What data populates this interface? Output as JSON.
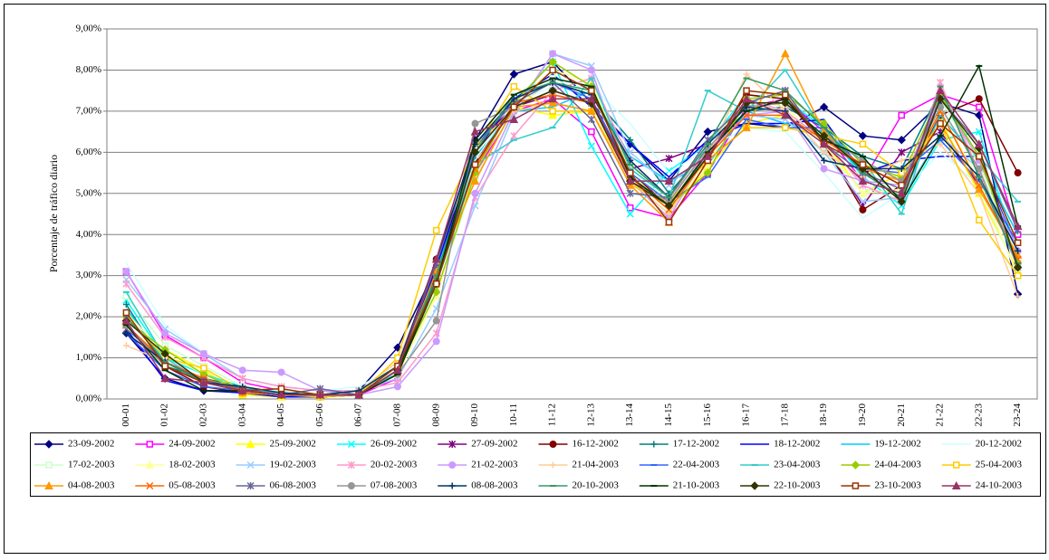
{
  "chart_data": {
    "type": "line",
    "y_label": "Porcentaje de tráfico diario",
    "categories": [
      "00-01",
      "01-02",
      "02-03",
      "03-04",
      "04-05",
      "05-06",
      "06-07",
      "07-08",
      "08-09",
      "09-10",
      "10-11",
      "11-12",
      "12-13",
      "13-14",
      "14-15",
      "15-16",
      "16-17",
      "17-18",
      "18-19",
      "19-20",
      "20-21",
      "21-22",
      "22-23",
      "23-24"
    ],
    "ylim": [
      0,
      9
    ],
    "yticks": [
      {
        "value": 0,
        "label": "0,00%"
      },
      {
        "value": 1,
        "label": "1,00%"
      },
      {
        "value": 2,
        "label": "2,00%"
      },
      {
        "value": 3,
        "label": "3,00%"
      },
      {
        "value": 4,
        "label": "4,00%"
      },
      {
        "value": 5,
        "label": "5,00%"
      },
      {
        "value": 6,
        "label": "6,00%"
      },
      {
        "value": 7,
        "label": "7,00%"
      },
      {
        "value": 8,
        "label": "8,00%"
      },
      {
        "value": 9,
        "label": "9,00%"
      }
    ],
    "grid": true,
    "legend": "bottom",
    "series": [
      {
        "name": "23-09-2002",
        "color": "#000080",
        "marker": "diamond",
        "values": [
          1.6,
          0.5,
          0.2,
          0.2,
          0.1,
          0.1,
          0.2,
          1.25,
          3.2,
          6.3,
          7.9,
          8.2,
          7.2,
          6.2,
          5.3,
          6.5,
          6.7,
          6.6,
          7.1,
          6.4,
          6.3,
          7.2,
          6.9,
          2.55
        ]
      },
      {
        "name": "24-09-2002",
        "color": "#FF00FF",
        "marker": "square",
        "values": [
          3.1,
          1.55,
          1.0,
          0.4,
          0.2,
          0.1,
          0.1,
          0.5,
          3.2,
          5.5,
          7.0,
          7.3,
          6.5,
          4.65,
          4.4,
          5.5,
          7.1,
          7.3,
          6.5,
          5.3,
          6.9,
          7.4,
          7.1,
          4.0
        ]
      },
      {
        "name": "25-09-2002",
        "color": "#FFFF00",
        "marker": "triangle",
        "values": [
          1.9,
          1.2,
          0.7,
          0.1,
          0.05,
          0.05,
          0.1,
          0.6,
          2.9,
          6.1,
          7.1,
          6.9,
          7.0,
          5.4,
          4.6,
          5.6,
          6.7,
          6.9,
          6.3,
          5.0,
          5.5,
          6.8,
          5.0,
          3.1
        ]
      },
      {
        "name": "26-09-2002",
        "color": "#00FFFF",
        "marker": "x",
        "values": [
          2.4,
          1.0,
          0.6,
          0.3,
          0.15,
          0.1,
          0.2,
          0.6,
          2.8,
          5.6,
          7.2,
          8.2,
          6.15,
          4.5,
          5.55,
          6.2,
          7.4,
          7.3,
          6.6,
          5.4,
          4.7,
          6.3,
          6.5,
          3.5
        ]
      },
      {
        "name": "27-09-2002",
        "color": "#800080",
        "marker": "star",
        "values": [
          1.8,
          0.8,
          0.4,
          0.2,
          0.1,
          0.1,
          0.1,
          0.6,
          3.3,
          6.2,
          7.1,
          7.4,
          7.2,
          5.6,
          5.85,
          6.2,
          7.2,
          7.5,
          6.2,
          4.7,
          6.0,
          6.5,
          5.2,
          3.4
        ]
      },
      {
        "name": "16-12-2002",
        "color": "#800000",
        "marker": "circle",
        "values": [
          1.8,
          0.8,
          0.3,
          0.15,
          0.1,
          0.05,
          0.1,
          0.7,
          3.4,
          5.8,
          7.1,
          7.5,
          7.2,
          5.5,
          4.7,
          6.0,
          7.4,
          7.3,
          6.2,
          4.6,
          5.2,
          6.9,
          7.3,
          5.5
        ]
      },
      {
        "name": "17-12-2002",
        "color": "#008080",
        "marker": "plus",
        "values": [
          2.3,
          0.8,
          0.5,
          0.3,
          0.1,
          0.1,
          0.2,
          0.7,
          2.9,
          6.0,
          7.3,
          7.7,
          7.4,
          6.3,
          5.0,
          6.1,
          7.0,
          7.1,
          6.6,
          5.9,
          5.6,
          7.5,
          5.5,
          3.2
        ]
      },
      {
        "name": "18-12-2002",
        "color": "#0000FF",
        "marker": "none",
        "values": [
          1.7,
          0.45,
          0.2,
          0.15,
          0.05,
          0.05,
          0.1,
          0.7,
          3.2,
          6.0,
          7.3,
          7.9,
          7.1,
          6.2,
          5.4,
          6.3,
          6.7,
          6.7,
          6.8,
          5.5,
          5.8,
          5.9,
          5.9,
          3.6
        ]
      },
      {
        "name": "19-12-2002",
        "color": "#00CCFF",
        "marker": "none",
        "values": [
          2.2,
          0.9,
          0.4,
          0.3,
          0.1,
          0.1,
          0.2,
          0.6,
          3.1,
          5.9,
          7.0,
          7.1,
          7.5,
          5.9,
          5.3,
          5.7,
          7.0,
          6.7,
          6.5,
          5.5,
          4.9,
          6.9,
          5.8,
          4.0
        ]
      },
      {
        "name": "20-12-2002",
        "color": "#CCFFFF",
        "marker": "none",
        "values": [
          3.3,
          1.8,
          1.1,
          0.5,
          0.3,
          0.2,
          0.3,
          0.8,
          3.0,
          5.8,
          7.2,
          7.6,
          7.6,
          6.7,
          5.5,
          6.1,
          6.6,
          6.5,
          5.5,
          4.4,
          5.0,
          6.0,
          5.2,
          3.0
        ]
      },
      {
        "name": "17-02-2003",
        "color": "#CCFFCC",
        "marker": "square",
        "values": [
          2.5,
          1.3,
          0.8,
          0.3,
          0.2,
          0.1,
          0.2,
          0.7,
          2.6,
          5.4,
          7.0,
          7.8,
          7.4,
          5.6,
          4.8,
          6.2,
          7.2,
          7.0,
          6.0,
          5.1,
          5.0,
          7.3,
          5.7,
          3.3
        ]
      },
      {
        "name": "18-02-2003",
        "color": "#FFFF99",
        "marker": "triangle",
        "values": [
          2.1,
          1.1,
          0.6,
          0.2,
          0.1,
          0.1,
          0.1,
          0.6,
          2.5,
          5.6,
          7.2,
          8.0,
          7.7,
          5.5,
          4.6,
          5.7,
          7.3,
          7.1,
          6.2,
          5.0,
          5.1,
          7.0,
          5.3,
          3.0
        ]
      },
      {
        "name": "19-02-2003",
        "color": "#99CCFF",
        "marker": "x",
        "values": [
          2.9,
          1.7,
          1.1,
          0.5,
          0.3,
          0.2,
          0.2,
          0.5,
          2.2,
          4.7,
          6.9,
          8.4,
          8.1,
          6.0,
          5.2,
          6.0,
          6.9,
          6.8,
          6.0,
          4.8,
          4.9,
          6.4,
          5.6,
          3.2
        ]
      },
      {
        "name": "20-02-2003",
        "color": "#FF99CC",
        "marker": "star",
        "values": [
          2.8,
          1.5,
          1.0,
          0.5,
          0.3,
          0.2,
          0.2,
          0.4,
          1.6,
          4.9,
          6.4,
          7.5,
          7.8,
          5.8,
          4.9,
          6.0,
          7.3,
          7.0,
          6.3,
          5.2,
          4.8,
          7.7,
          5.5,
          3.4
        ]
      },
      {
        "name": "21-02-2003",
        "color": "#CC99FF",
        "marker": "circle",
        "values": [
          3.1,
          1.6,
          1.1,
          0.7,
          0.65,
          0.2,
          0.1,
          0.3,
          1.4,
          5.0,
          7.0,
          8.4,
          8.0,
          5.3,
          4.4,
          6.0,
          6.9,
          7.0,
          5.6,
          5.3,
          5.2,
          7.4,
          5.8,
          3.6
        ]
      },
      {
        "name": "21-04-2003",
        "color": "#FFCC99",
        "marker": "plus",
        "values": [
          1.3,
          0.9,
          0.5,
          0.2,
          0.1,
          0.1,
          0.2,
          0.9,
          3.3,
          6.2,
          7.0,
          7.2,
          7.0,
          5.3,
          4.5,
          5.9,
          7.9,
          7.0,
          6.0,
          5.4,
          5.8,
          6.2,
          5.0,
          2.5
        ]
      },
      {
        "name": "22-04-2003",
        "color": "#3366FF",
        "marker": "dash",
        "values": [
          1.6,
          0.7,
          0.3,
          0.2,
          0.1,
          0.1,
          0.1,
          0.7,
          3.0,
          6.1,
          7.3,
          7.7,
          7.3,
          5.5,
          4.8,
          5.4,
          6.8,
          6.6,
          6.6,
          5.6,
          5.5,
          6.3,
          5.3,
          3.8
        ]
      },
      {
        "name": "23-04-2003",
        "color": "#33CCCC",
        "marker": "dash",
        "values": [
          2.6,
          1.0,
          0.4,
          0.3,
          0.1,
          0.1,
          0.2,
          0.6,
          3.1,
          5.7,
          6.3,
          6.6,
          7.8,
          5.6,
          4.9,
          7.5,
          7.0,
          8.0,
          6.5,
          5.8,
          4.5,
          7.4,
          5.9,
          4.8
        ]
      },
      {
        "name": "24-04-2003",
        "color": "#99CC00",
        "marker": "diamond",
        "values": [
          1.9,
          1.2,
          0.6,
          0.2,
          0.1,
          0.1,
          0.1,
          0.7,
          2.6,
          5.5,
          7.2,
          8.2,
          7.6,
          5.4,
          4.7,
          5.5,
          7.3,
          7.4,
          6.7,
          5.7,
          5.4,
          7.4,
          5.9,
          3.3
        ]
      },
      {
        "name": "25-04-2003",
        "color": "#FFCC00",
        "marker": "square",
        "values": [
          2.0,
          1.0,
          0.75,
          0.2,
          0.1,
          0.05,
          0.1,
          1.0,
          4.1,
          6.1,
          7.6,
          7.0,
          7.0,
          5.2,
          4.8,
          5.8,
          6.6,
          6.6,
          6.4,
          6.2,
          5.5,
          6.7,
          4.35,
          3.0
        ]
      },
      {
        "name": "04-08-2003",
        "color": "#FF9900",
        "marker": "triangle",
        "values": [
          1.8,
          0.9,
          0.5,
          0.15,
          0.1,
          0.1,
          0.1,
          0.7,
          3.1,
          5.3,
          7.1,
          7.2,
          7.0,
          5.2,
          4.3,
          5.8,
          6.6,
          8.4,
          6.5,
          5.6,
          5.3,
          6.7,
          5.1,
          3.5
        ]
      },
      {
        "name": "05-08-2003",
        "color": "#FF6600",
        "marker": "x",
        "values": [
          1.8,
          0.9,
          0.5,
          0.2,
          0.1,
          0.1,
          0.1,
          0.7,
          3.0,
          5.6,
          7.2,
          7.4,
          7.2,
          5.4,
          4.6,
          5.9,
          6.9,
          6.9,
          6.3,
          5.7,
          5.2,
          7.0,
          5.2,
          3.4
        ]
      },
      {
        "name": "06-08-2003",
        "color": "#666699",
        "marker": "star",
        "values": [
          1.7,
          0.9,
          0.45,
          0.25,
          0.1,
          0.25,
          0.1,
          0.7,
          3.3,
          6.2,
          7.2,
          7.7,
          6.8,
          5.0,
          4.9,
          6.3,
          7.2,
          7.5,
          6.2,
          5.5,
          5.1,
          7.3,
          6.2,
          4.1
        ]
      },
      {
        "name": "07-08-2003",
        "color": "#969696",
        "marker": "circle",
        "values": [
          1.8,
          0.8,
          0.4,
          0.2,
          0.1,
          0.1,
          0.1,
          0.6,
          1.9,
          6.7,
          7.1,
          7.5,
          7.2,
          5.3,
          4.8,
          6.1,
          7.1,
          7.2,
          6.4,
          5.8,
          5.3,
          7.1,
          5.6,
          3.2
        ]
      },
      {
        "name": "08-08-2003",
        "color": "#003366",
        "marker": "plus",
        "values": [
          1.6,
          0.9,
          0.4,
          0.3,
          0.15,
          0.1,
          0.2,
          0.8,
          3.4,
          6.2,
          7.3,
          7.7,
          7.4,
          5.8,
          4.9,
          6.2,
          7.1,
          7.0,
          5.8,
          5.6,
          5.6,
          6.4,
          5.4,
          3.6
        ]
      },
      {
        "name": "20-10-2003",
        "color": "#339966",
        "marker": "dash",
        "values": [
          2.0,
          0.9,
          0.4,
          0.2,
          0.1,
          0.1,
          0.1,
          0.7,
          3.0,
          6.0,
          7.4,
          7.7,
          7.5,
          5.7,
          4.9,
          6.2,
          7.8,
          7.5,
          6.6,
          5.5,
          4.9,
          7.6,
          5.4,
          3.3
        ]
      },
      {
        "name": "21-10-2003",
        "color": "#003300",
        "marker": "dash",
        "values": [
          1.8,
          0.7,
          0.2,
          0.2,
          0.1,
          0.1,
          0.1,
          0.6,
          2.8,
          6.3,
          7.4,
          7.8,
          7.6,
          5.4,
          4.7,
          6.0,
          7.0,
          7.3,
          6.3,
          5.9,
          4.8,
          6.4,
          8.1,
          4.2
        ]
      },
      {
        "name": "22-10-2003",
        "color": "#333300",
        "marker": "diamond",
        "values": [
          1.9,
          1.1,
          0.4,
          0.2,
          0.1,
          0.1,
          0.1,
          0.7,
          2.8,
          6.0,
          7.1,
          7.5,
          7.2,
          5.3,
          4.7,
          5.9,
          7.2,
          7.2,
          6.4,
          5.6,
          4.8,
          7.3,
          6.1,
          3.2
        ]
      },
      {
        "name": "23-10-2003",
        "color": "#993300",
        "marker": "square",
        "values": [
          2.1,
          0.8,
          0.4,
          0.2,
          0.25,
          0.1,
          0.1,
          0.8,
          2.8,
          5.7,
          7.1,
          8.0,
          7.5,
          5.5,
          4.3,
          5.8,
          7.5,
          7.4,
          6.2,
          5.7,
          5.2,
          6.7,
          5.9,
          3.8
        ]
      },
      {
        "name": "24-10-2003",
        "color": "#993366",
        "marker": "triangle",
        "values": [
          1.9,
          0.5,
          0.4,
          0.2,
          0.1,
          0.1,
          0.1,
          0.7,
          3.4,
          6.5,
          6.8,
          7.3,
          7.3,
          5.3,
          5.3,
          5.9,
          7.3,
          6.9,
          6.2,
          5.3,
          5.0,
          7.5,
          6.2,
          4.2
        ]
      }
    ]
  }
}
